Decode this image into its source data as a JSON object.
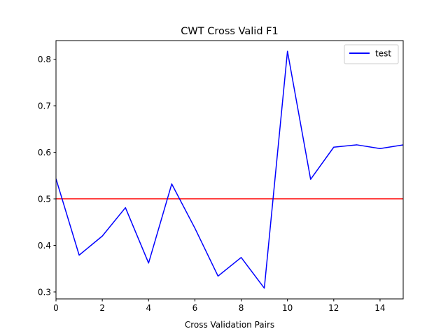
{
  "chart_data": {
    "type": "line",
    "title": "CWT Cross Valid F1",
    "xlabel": "Cross Validation Pairs",
    "ylabel": "",
    "xlim": [
      0,
      15
    ],
    "ylim": [
      0.285,
      0.84
    ],
    "xticks": [
      0,
      2,
      4,
      6,
      8,
      10,
      12,
      14
    ],
    "yticks": [
      0.3,
      0.4,
      0.5,
      0.6,
      0.7,
      0.8
    ],
    "grid": false,
    "legend_position": "top-right",
    "series": [
      {
        "name": "test",
        "color": "#0000ff",
        "x": [
          0,
          1,
          2,
          3,
          4,
          5,
          6,
          7,
          8,
          9,
          10,
          11,
          12,
          13,
          14,
          15
        ],
        "values": [
          0.543,
          0.379,
          0.42,
          0.481,
          0.362,
          0.532,
          0.437,
          0.334,
          0.374,
          0.308,
          0.817,
          0.542,
          0.611,
          0.616,
          0.608,
          0.616
        ]
      }
    ],
    "reference_lines": [
      {
        "axis": "y",
        "value": 0.5,
        "color": "#ff0000"
      }
    ]
  }
}
